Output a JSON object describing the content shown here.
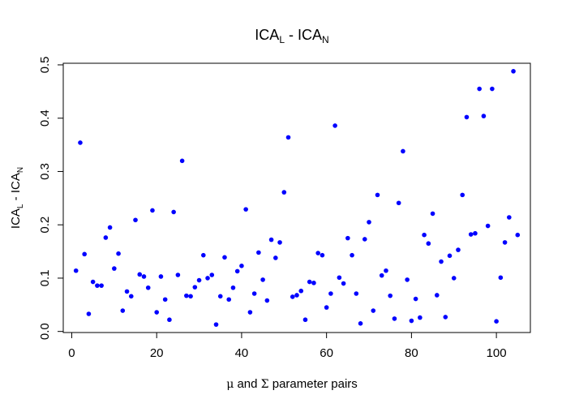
{
  "chart_data": {
    "type": "scatter",
    "title": {
      "base": "ICA",
      "sub1": "L",
      "sep": " - ",
      "base2": "ICA",
      "sub2": "N"
    },
    "xlabel": {
      "mu": "μ",
      "and": " and ",
      "sigma": "Σ",
      "rest": " parameter pairs"
    },
    "ylabel": {
      "base": "ICA",
      "sub1": "L",
      "sep": " - ",
      "base2": "ICA",
      "sub2": "N"
    },
    "xlim": [
      -2,
      108
    ],
    "ylim": [
      -0.002,
      0.503
    ],
    "x_ticks": [
      0,
      20,
      40,
      60,
      80,
      100
    ],
    "y_ticks": [
      0.0,
      0.1,
      0.2,
      0.3,
      0.4,
      0.5
    ],
    "x_tick_labels": [
      "0",
      "20",
      "40",
      "60",
      "80",
      "100"
    ],
    "y_tick_labels": [
      "0.0",
      "0.1",
      "0.2",
      "0.3",
      "0.4",
      "0.5"
    ],
    "point_color": "#0000ff",
    "x": [
      1,
      2,
      3,
      4,
      5,
      6,
      7,
      8,
      9,
      10,
      11,
      12,
      13,
      14,
      15,
      16,
      17,
      18,
      19,
      20,
      21,
      22,
      23,
      24,
      25,
      26,
      27,
      28,
      29,
      30,
      31,
      32,
      33,
      34,
      35,
      36,
      37,
      38,
      39,
      40,
      41,
      42,
      43,
      44,
      45,
      46,
      47,
      48,
      49,
      50,
      51,
      52,
      53,
      54,
      55,
      56,
      57,
      58,
      59,
      60,
      61,
      62,
      63,
      64,
      65,
      66,
      67,
      68,
      69,
      70,
      71,
      72,
      73,
      74,
      75,
      76,
      77,
      78,
      79,
      80,
      81,
      82,
      83,
      84,
      85,
      86,
      87,
      88,
      89,
      90,
      91,
      92,
      93,
      94,
      95,
      96,
      97,
      98,
      99,
      100,
      101,
      102,
      103,
      104,
      105
    ],
    "y": [
      0.114,
      0.354,
      0.145,
      0.033,
      0.093,
      0.086,
      0.086,
      0.176,
      0.195,
      0.118,
      0.146,
      0.039,
      0.075,
      0.066,
      0.209,
      0.107,
      0.103,
      0.082,
      0.227,
      0.036,
      0.103,
      0.06,
      0.022,
      0.224,
      0.106,
      0.32,
      0.067,
      0.066,
      0.083,
      0.096,
      0.143,
      0.1,
      0.106,
      0.013,
      0.066,
      0.139,
      0.06,
      0.082,
      0.113,
      0.123,
      0.229,
      0.036,
      0.071,
      0.148,
      0.097,
      0.058,
      0.172,
      0.138,
      0.167,
      0.261,
      0.364,
      0.065,
      0.068,
      0.076,
      0.022,
      0.093,
      0.091,
      0.147,
      0.143,
      0.045,
      0.071,
      0.386,
      0.101,
      0.09,
      0.175,
      0.143,
      0.071,
      0.015,
      0.173,
      0.205,
      0.039,
      0.256,
      0.105,
      0.114,
      0.067,
      0.024,
      0.241,
      0.338,
      0.097,
      0.02,
      0.061,
      0.026,
      0.181,
      0.165,
      0.221,
      0.068,
      0.131,
      0.027,
      0.142,
      0.1,
      0.153,
      0.256,
      0.402,
      0.182,
      0.184,
      0.455,
      0.404,
      0.198,
      0.455,
      0.019,
      0.101,
      0.167,
      0.214,
      0.488,
      0.181
    ]
  }
}
